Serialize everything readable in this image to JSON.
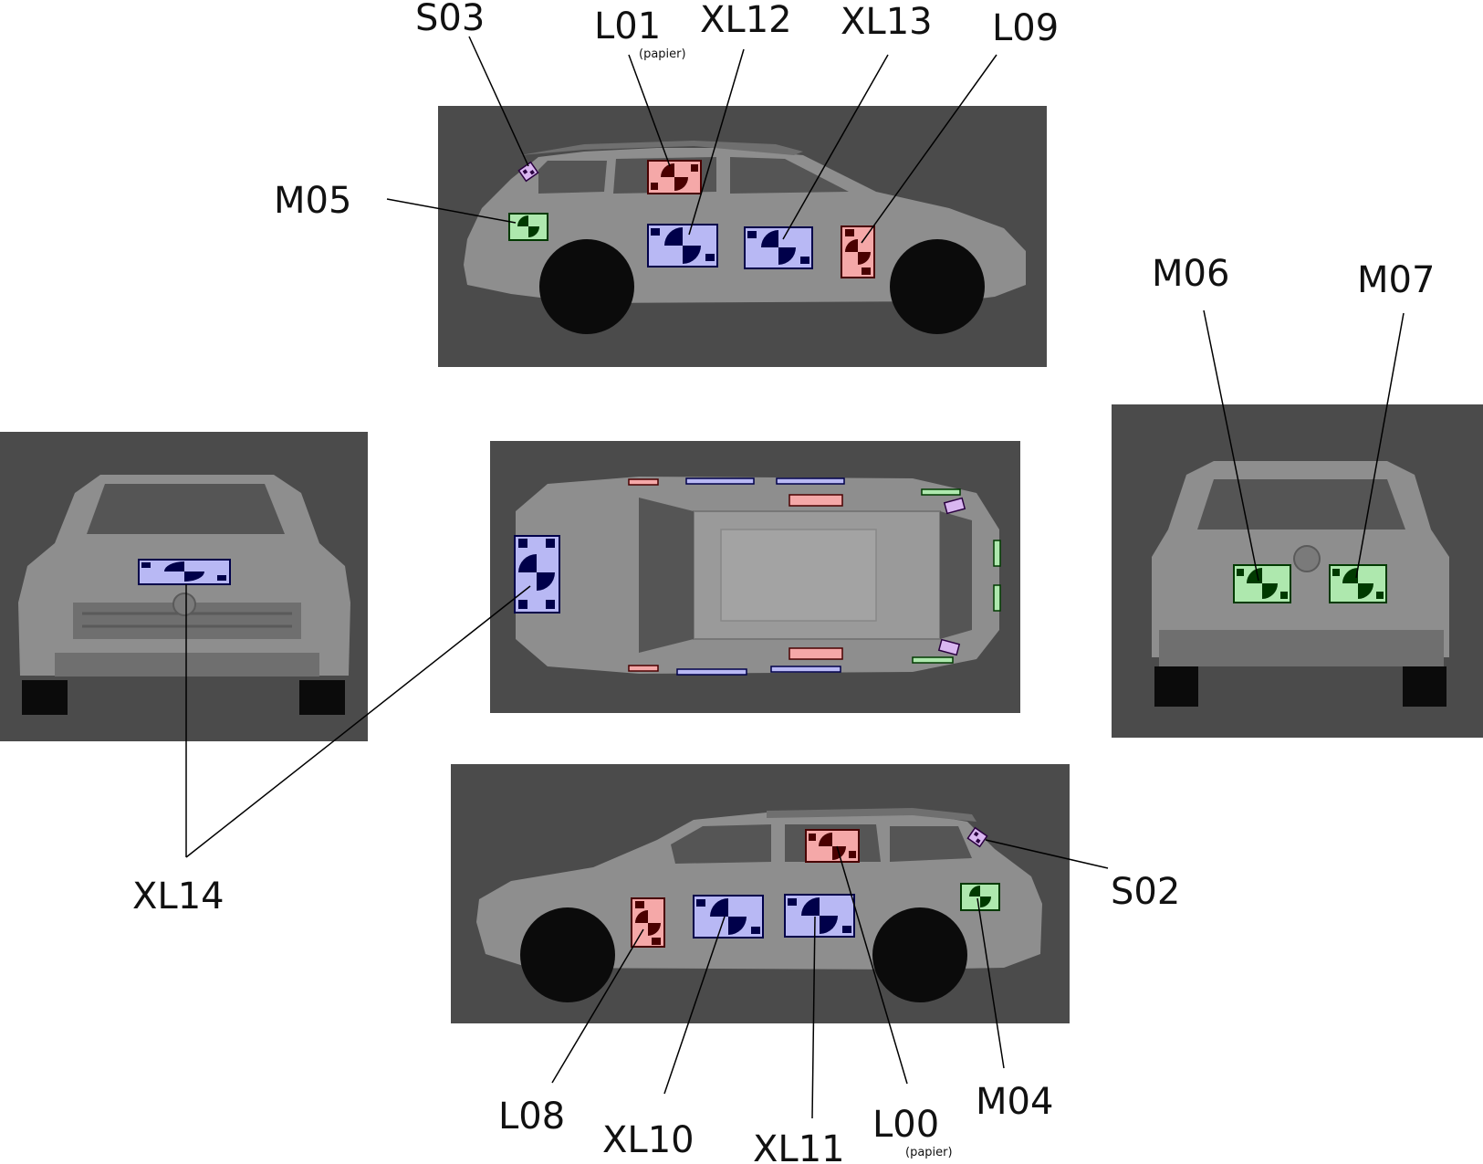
{
  "colors": {
    "background": "#ffffff",
    "panel": "#4b4b4b",
    "car_body": "#8e8e8e",
    "target_blue_fill": "#b8b8f4",
    "target_blue_ink": "#00004a",
    "target_red_fill": "#f5a8a8",
    "target_red_ink": "#4a0000",
    "target_green_fill": "#aee8ae",
    "target_green_ink": "#003a00",
    "target_purple_fill": "#d9b6f0",
    "target_purple_ink": "#2a0040"
  },
  "views": [
    "left-side",
    "front",
    "top",
    "rear",
    "right-side"
  ],
  "labels": {
    "S03": "S03",
    "L01": "L01",
    "L01_note": "(papier)",
    "XL12": "XL12",
    "XL13": "XL13",
    "L09": "L09",
    "M05": "M05",
    "M06": "M06",
    "M07": "M07",
    "XL14": "XL14",
    "S02": "S02",
    "L08": "L08",
    "XL10": "XL10",
    "XL11": "XL11",
    "L00": "L00",
    "L00_note": "(papier)",
    "M04": "M04"
  }
}
